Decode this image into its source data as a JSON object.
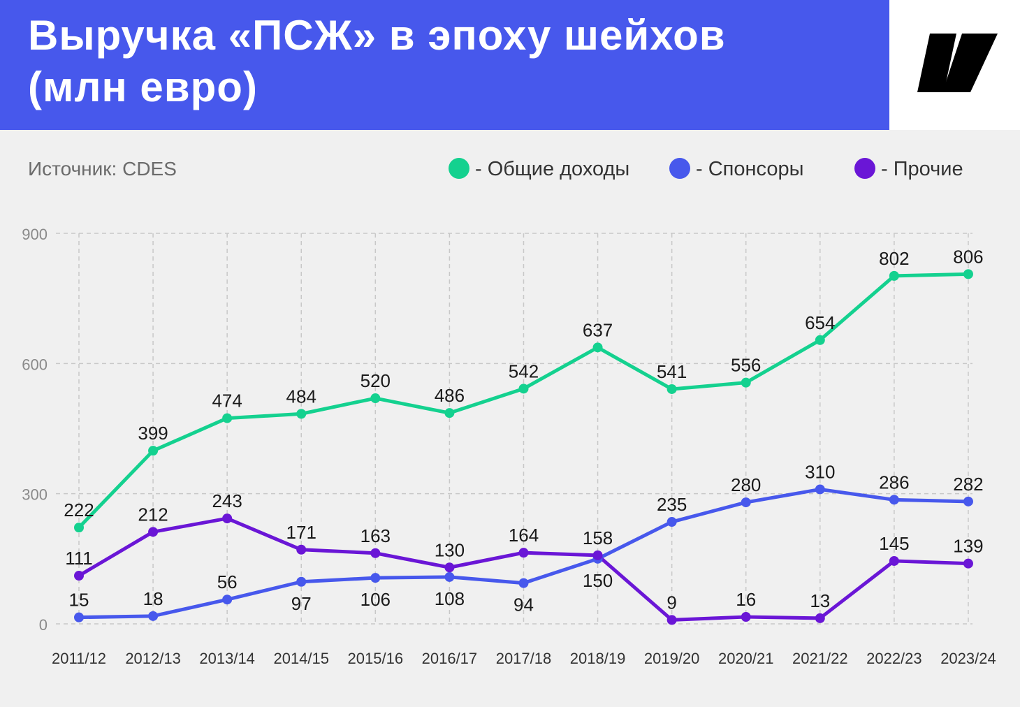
{
  "header": {
    "title_line1": "Выручка «ПСЖ» в эпоху шейхов",
    "title_line2": "(млн евро)",
    "background_color": "#4758ec"
  },
  "logo": {
    "icon": "brand-logo-icon"
  },
  "source": "Источник: CDES",
  "legend": [
    {
      "label": "-  Общие доходы",
      "color": "#14d18f"
    },
    {
      "label": "-  Спонсоры",
      "color": "#4758ec"
    },
    {
      "label": "- Прочие",
      "color": "#6a16d6"
    }
  ],
  "chart_data": {
    "type": "line",
    "title": "Выручка «ПСЖ» в эпоху шейхов (млн евро)",
    "xlabel": "",
    "ylabel": "",
    "ylim": [
      0,
      900
    ],
    "yticks": [
      0,
      300,
      600,
      900
    ],
    "grid": true,
    "legend_position": "top-right",
    "categories": [
      "2011/12",
      "2012/13",
      "2013/14",
      "2014/15",
      "2015/16",
      "2016/17",
      "2017/18",
      "2018/19",
      "2019/20",
      "2020/21",
      "2021/22",
      "2022/23",
      "2023/24"
    ],
    "series": [
      {
        "name": "Общие доходы",
        "color": "#14d18f",
        "labels": "above",
        "values": [
          222,
          399,
          474,
          484,
          520,
          486,
          542,
          637,
          541,
          556,
          654,
          802,
          806
        ]
      },
      {
        "name": "Спонсоры",
        "color": "#4758ec",
        "labels": "mixed",
        "values": [
          15,
          18,
          56,
          97,
          106,
          108,
          94,
          150,
          235,
          280,
          310,
          286,
          282
        ]
      },
      {
        "name": "Прочие",
        "color": "#6a16d6",
        "labels": "mixed",
        "values": [
          111,
          212,
          243,
          171,
          163,
          130,
          164,
          158,
          9,
          16,
          13,
          145,
          139
        ]
      }
    ]
  }
}
